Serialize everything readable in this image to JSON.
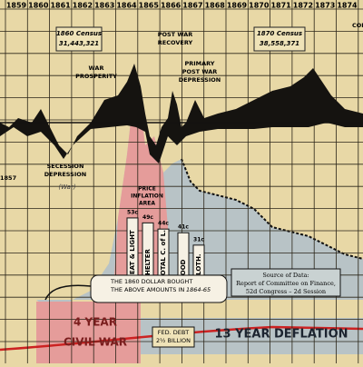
{
  "years": [
    "1859",
    "1860",
    "1861",
    "1862",
    "1863",
    "1864",
    "1865",
    "1866",
    "1867",
    "1868",
    "1869",
    "1870",
    "1871",
    "1872",
    "1873",
    "1874"
  ],
  "census_1860": {
    "title": "1860 Census",
    "count": "31,443,321"
  },
  "census_1870": {
    "title": "1870 Census",
    "count": "38,558,371"
  },
  "post_war_recovery": [
    "POST WAR",
    "RECOVERY"
  ],
  "commodity": "COMMO",
  "war_prosperity": [
    "WAR",
    "PROSPERITY"
  ],
  "primary_depression": [
    "PRIMARY",
    "POST WAR",
    "DEPRESSION"
  ],
  "secession_depression": [
    "SECESSION",
    "DEPRESSION"
  ],
  "war_note": "(War)",
  "year_1857": "1857",
  "price_inflation": [
    "PRICE",
    "INFLATION",
    "AREA"
  ],
  "cost_bars": {
    "type": "bar",
    "categories": [
      "HEAT & LIGHT",
      "SHELTER",
      "TOTAL C. of L.",
      "FOOD",
      "CLOTH."
    ],
    "values": [
      53,
      49,
      44,
      41,
      31
    ],
    "value_labels": [
      "53c",
      "49c",
      "44c",
      "41c",
      "31c"
    ]
  },
  "dollar_note": [
    "THE 1860 DOLLAR BOUGHT",
    "THE ABOVE AMOUNTS IN",
    "1864-65"
  ],
  "source": [
    "Source of Data:",
    "Report of Committee on Finance,",
    "52d Congress – 2d Session"
  ],
  "civil_war": [
    "4 YEAR",
    "CIVIL WAR"
  ],
  "fed_debt": [
    "FED. DEBT",
    "2½ BILLION"
  ],
  "deflation": "13 YEAR DEFLATION"
}
